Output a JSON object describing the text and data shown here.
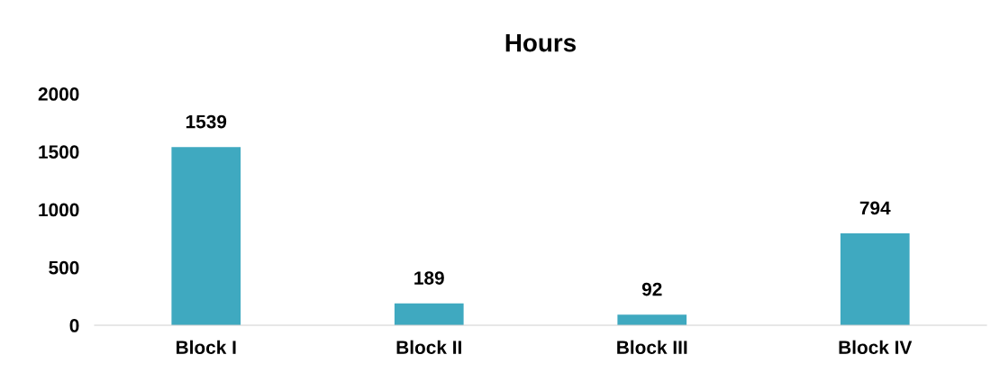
{
  "chart_data": {
    "type": "bar",
    "title": "Hours",
    "categories": [
      "Block I",
      "Block II",
      "Block III",
      "Block IV"
    ],
    "values": [
      1539,
      189,
      92,
      794
    ],
    "color": "#3fa9c0",
    "ylim": [
      0,
      2000
    ],
    "yticks": [
      0,
      500,
      1000,
      1500,
      2000
    ],
    "grid": false,
    "data_labels": true
  }
}
